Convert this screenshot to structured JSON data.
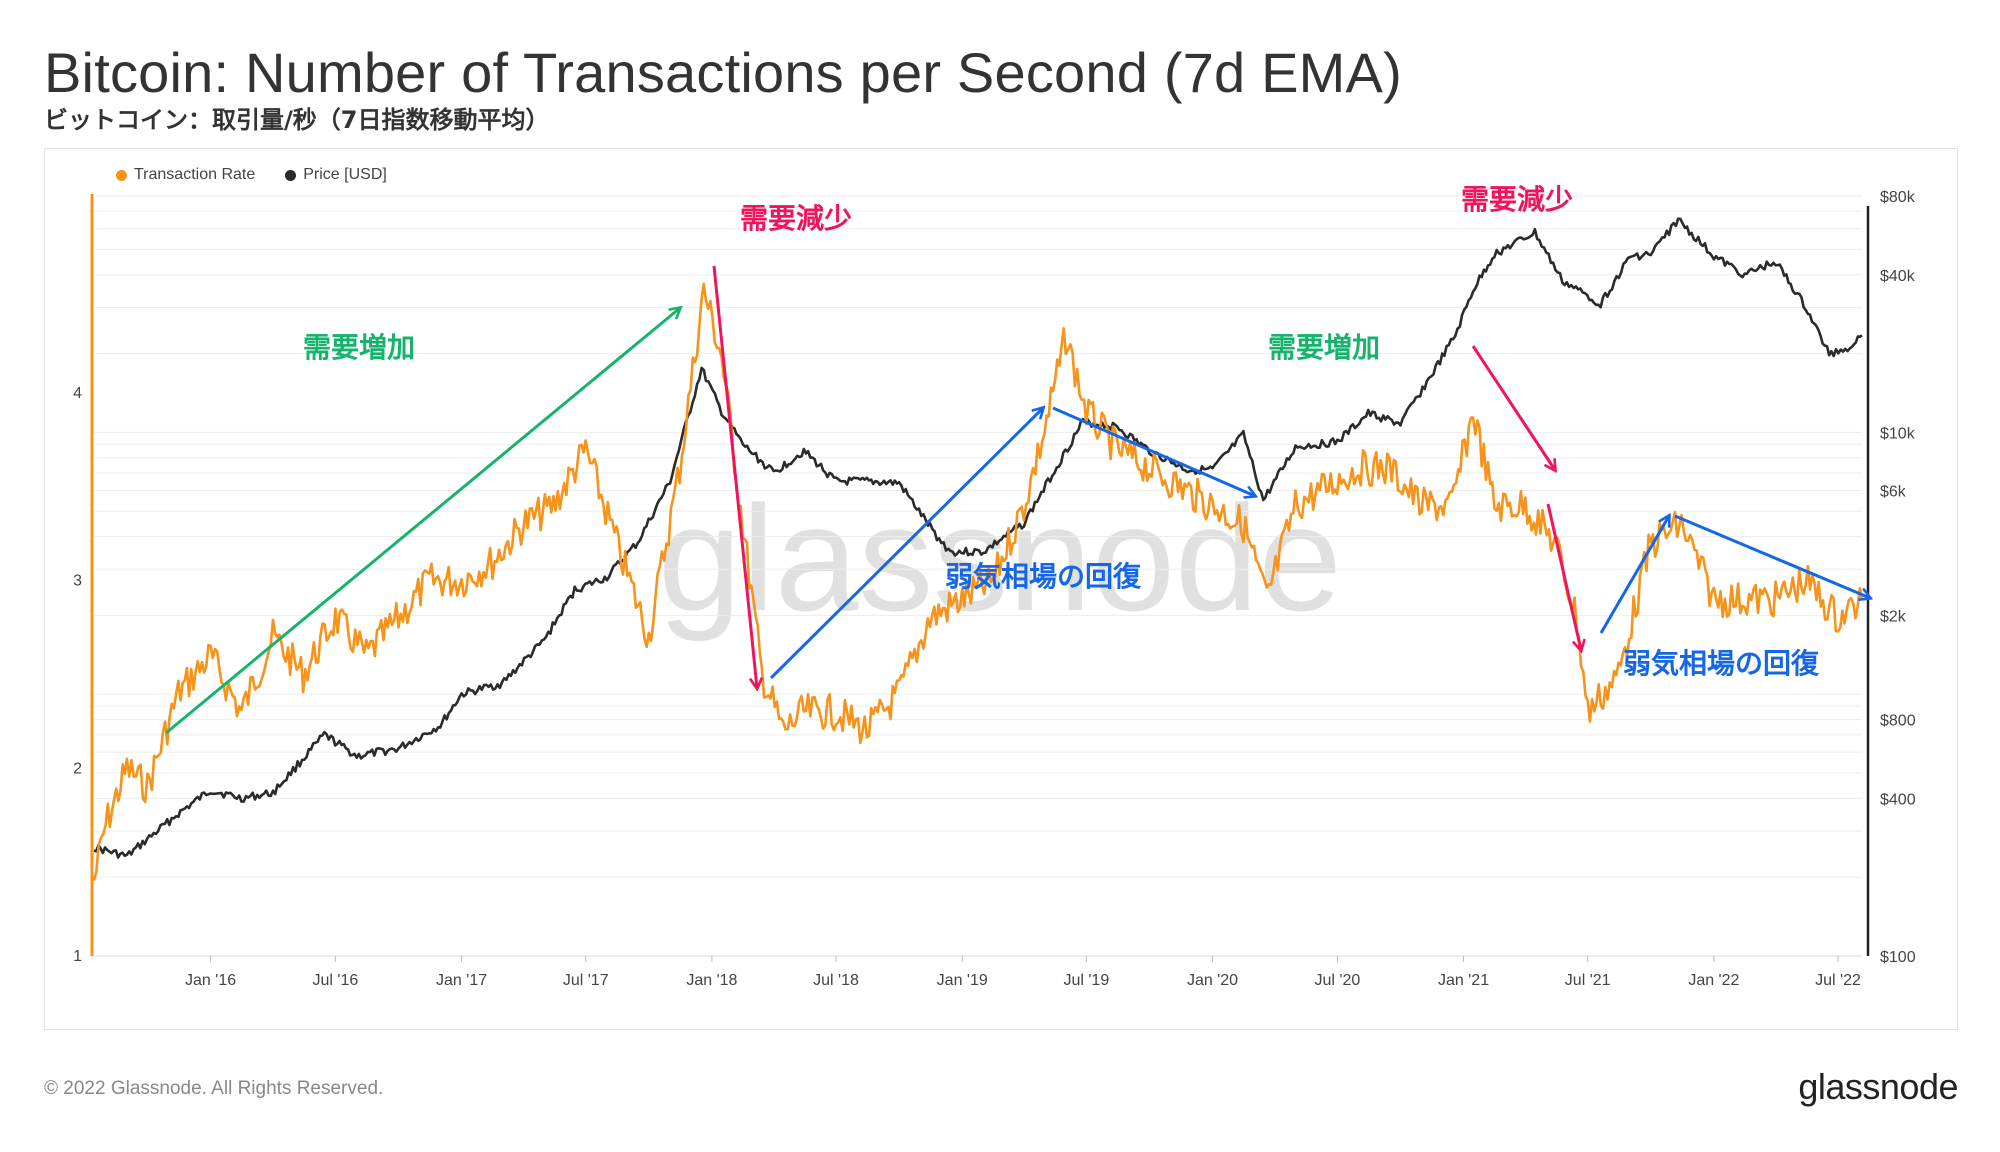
{
  "header": {
    "title": "Bitcoin: Number of Transactions per Second (7d EMA)",
    "subtitle": "ビットコイン：取引量/秒（7日指数移動平均）"
  },
  "legend": [
    {
      "label": "Transaction Rate",
      "color": "#f7931a"
    },
    {
      "label": "Price [USD]",
      "color": "#2b2b2b"
    }
  ],
  "footer": {
    "copyright": "© 2022 Glassnode. All Rights Reserved.",
    "brand": "glassnode"
  },
  "watermark": "glassnode",
  "chart_data": {
    "type": "line",
    "title": "Bitcoin: Number of Transactions per Second (7d EMA)",
    "x_ticks": [
      "Jan '16",
      "Jul '16",
      "Jan '17",
      "Jul '17",
      "Jan '18",
      "Jul '18",
      "Jan '19",
      "Jul '19",
      "Jan '20",
      "Jul '20",
      "Jan '21",
      "Jul '21",
      "Jan '22",
      "Jul '22"
    ],
    "x_range": [
      "2015-07-15",
      "2022-08-05"
    ],
    "y_left": {
      "ticks": [
        1,
        2,
        3,
        4
      ],
      "range": [
        1,
        5.05
      ],
      "scale": "linear"
    },
    "y_right": {
      "ticks": [
        "$100",
        "$400",
        "$800",
        "$2k",
        "$6k",
        "$10k",
        "$40k",
        "$80k"
      ],
      "tick_values": [
        100,
        400,
        800,
        2000,
        6000,
        10000,
        40000,
        80000
      ],
      "range": [
        100,
        80000
      ],
      "scale": "log"
    },
    "legend_position": "top-left",
    "grid": true,
    "series": [
      {
        "name": "Transaction Rate",
        "axis": "left",
        "color": "#f7931a",
        "x": [
          "2015-07-15",
          "2015-08-01",
          "2015-09-01",
          "2015-10-01",
          "2015-11-15",
          "2016-01-01",
          "2016-02-15",
          "2016-04-01",
          "2016-05-15",
          "2016-07-01",
          "2016-08-15",
          "2016-10-01",
          "2016-11-15",
          "2017-01-01",
          "2017-02-15",
          "2017-04-01",
          "2017-05-15",
          "2017-07-01",
          "2017-08-15",
          "2017-10-01",
          "2017-11-15",
          "2017-12-20",
          "2018-01-15",
          "2018-02-15",
          "2018-03-15",
          "2018-04-15",
          "2018-05-15",
          "2018-07-01",
          "2018-08-15",
          "2018-10-01",
          "2018-11-15",
          "2019-01-01",
          "2019-02-15",
          "2019-04-01",
          "2019-05-01",
          "2019-06-01",
          "2019-07-01",
          "2019-08-15",
          "2019-10-01",
          "2019-11-15",
          "2020-01-01",
          "2020-02-15",
          "2020-03-20",
          "2020-05-01",
          "2020-06-15",
          "2020-08-01",
          "2020-09-15",
          "2020-11-01",
          "2020-12-15",
          "2021-01-15",
          "2021-02-15",
          "2021-04-01",
          "2021-05-15",
          "2021-06-15",
          "2021-07-01",
          "2021-08-15",
          "2021-10-01",
          "2021-11-15",
          "2022-01-01",
          "2022-02-15",
          "2022-04-01",
          "2022-05-15",
          "2022-07-01",
          "2022-08-05"
        ],
        "y": [
          1.4,
          1.7,
          2.0,
          1.9,
          2.4,
          2.6,
          2.3,
          2.7,
          2.5,
          2.8,
          2.6,
          2.8,
          3.0,
          3.0,
          3.1,
          3.3,
          3.4,
          3.7,
          3.2,
          2.7,
          3.6,
          4.55,
          4.2,
          3.3,
          2.5,
          2.2,
          2.3,
          2.3,
          2.2,
          2.4,
          2.8,
          2.9,
          3.0,
          3.4,
          3.8,
          4.3,
          3.9,
          3.7,
          3.6,
          3.5,
          3.4,
          3.3,
          2.9,
          3.4,
          3.5,
          3.6,
          3.6,
          3.4,
          3.4,
          3.9,
          3.4,
          3.4,
          3.2,
          2.8,
          2.3,
          2.5,
          3.2,
          3.3,
          2.9,
          2.9,
          2.9,
          3.0,
          2.8,
          2.9
        ]
      },
      {
        "name": "Price [USD]",
        "axis": "right",
        "color": "#2b2b2b",
        "x": [
          "2015-07-15",
          "2015-09-01",
          "2015-11-15",
          "2016-01-01",
          "2016-02-15",
          "2016-04-01",
          "2016-06-15",
          "2016-08-01",
          "2016-10-01",
          "2016-12-01",
          "2017-01-01",
          "2017-03-01",
          "2017-05-01",
          "2017-06-15",
          "2017-08-01",
          "2017-09-15",
          "2017-11-01",
          "2017-12-17",
          "2018-01-15",
          "2018-02-15",
          "2018-04-01",
          "2018-05-15",
          "2018-07-01",
          "2018-08-15",
          "2018-10-01",
          "2018-11-25",
          "2018-12-15",
          "2019-02-01",
          "2019-04-01",
          "2019-06-26",
          "2019-08-15",
          "2019-10-01",
          "2019-11-25",
          "2020-01-01",
          "2020-02-15",
          "2020-03-15",
          "2020-05-01",
          "2020-07-01",
          "2020-08-15",
          "2020-10-01",
          "2020-11-15",
          "2020-12-20",
          "2021-01-15",
          "2021-02-15",
          "2021-04-15",
          "2021-05-25",
          "2021-07-20",
          "2021-09-01",
          "2021-10-01",
          "2021-11-10",
          "2022-01-01",
          "2022-02-15",
          "2022-04-01",
          "2022-05-15",
          "2022-06-18",
          "2022-07-15",
          "2022-08-05"
        ],
        "y": [
          260,
          240,
          350,
          430,
          400,
          420,
          700,
          580,
          620,
          760,
          1000,
          1100,
          1600,
          2500,
          2800,
          3800,
          6500,
          17500,
          12000,
          9000,
          7000,
          8500,
          6500,
          6500,
          6400,
          4000,
          3500,
          3500,
          4500,
          11000,
          10500,
          8500,
          7200,
          7200,
          9800,
          5500,
          8800,
          9200,
          11800,
          10800,
          16500,
          23500,
          35000,
          48000,
          58000,
          38000,
          31000,
          47000,
          48000,
          65000,
          47000,
          40000,
          45000,
          30000,
          20000,
          21000,
          23500
        ]
      }
    ],
    "annotations": [
      {
        "text": "需要増加",
        "color": "#16b46b"
      },
      {
        "text": "需要減少",
        "color": "#f0145a"
      },
      {
        "text": "弱気相場の回復",
        "color": "#1666e8"
      },
      {
        "text": "需要増加",
        "color": "#16b46b"
      },
      {
        "text": "需要減少",
        "color": "#f0145a"
      },
      {
        "text": "弱気相場の回復",
        "color": "#1666e8"
      }
    ]
  }
}
